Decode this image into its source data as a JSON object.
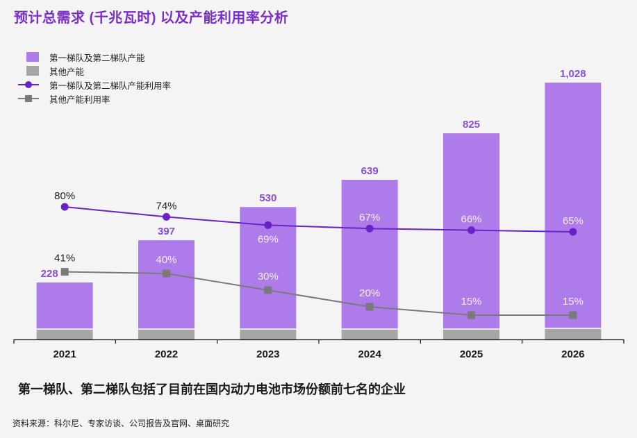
{
  "title": "预计总需求 (千兆瓦时) 以及产能利用率分析",
  "legend": [
    {
      "label": "第一梯队及第二梯队产能",
      "type": "bar",
      "color": "#ad7cea"
    },
    {
      "label": "其他产能",
      "type": "bar",
      "color": "#a6a6a6"
    },
    {
      "label": "第一梯队及第二梯队产能利用率",
      "type": "line-circle",
      "color": "#6b21c8"
    },
    {
      "label": "其他产能利用率",
      "type": "line-square",
      "color": "#7a7a7a"
    }
  ],
  "subtitle": "第一梯队、第二梯队包括了目前在国内动力电池市场份额前七名的企业",
  "source": "资料来源：科尔尼、专家访谈、公司报告及官网、桌面研究",
  "chart_data": {
    "type": "bar",
    "title": "预计总需求 (千兆瓦时) 以及产能利用率分析",
    "xlabel": "",
    "ylabel": "",
    "categories": [
      "2021",
      "2022",
      "2023",
      "2024",
      "2025",
      "2026"
    ],
    "totals": [
      228,
      397,
      530,
      639,
      825,
      1028
    ],
    "total_labels": [
      "228",
      "397",
      "530",
      "639",
      "825",
      "1,028"
    ],
    "series": [
      {
        "name": "第一梯队及第二梯队产能",
        "type": "bar",
        "stack": "capacity",
        "values": [
          188,
          357,
          490,
          599,
          785,
          985
        ],
        "color": "#ad7cea"
      },
      {
        "name": "其他产能",
        "type": "bar",
        "stack": "capacity",
        "values": [
          40,
          40,
          40,
          40,
          40,
          43
        ],
        "color": "#a6a6a6"
      },
      {
        "name": "第一梯队及第二梯队产能利用率",
        "type": "line",
        "values": [
          80,
          74,
          69,
          67,
          66,
          65
        ],
        "labels": [
          "80%",
          "74%",
          "69%",
          "67%",
          "66%",
          "65%"
        ],
        "color": "#6b21c8",
        "marker": "circle"
      },
      {
        "name": "其他产能利用率",
        "type": "line",
        "values": [
          41,
          40,
          30,
          20,
          15,
          15
        ],
        "labels": [
          "41%",
          "40%",
          "30%",
          "20%",
          "15%",
          "15%"
        ],
        "color": "#7a7a7a",
        "marker": "square"
      }
    ],
    "ylim": [
      0,
      1028
    ],
    "grid": false,
    "legend_position": "top-left"
  }
}
